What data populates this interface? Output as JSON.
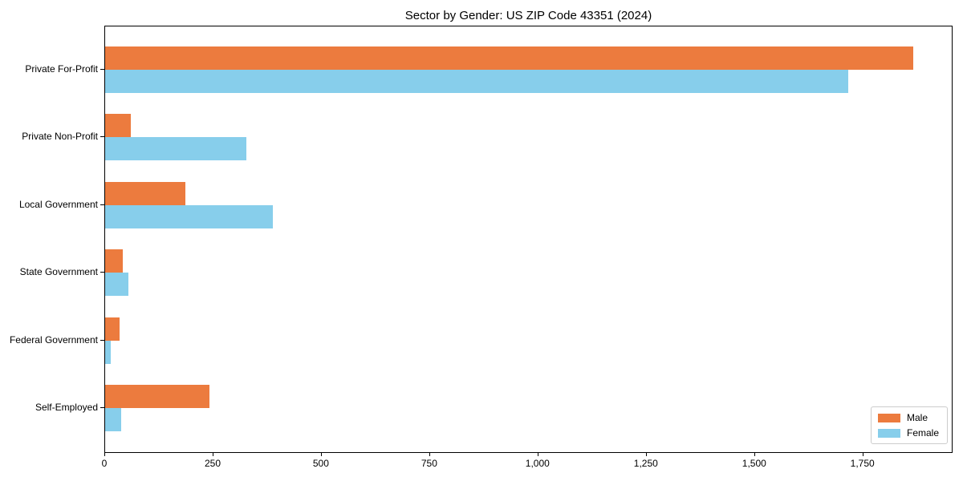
{
  "title": "Sector by Gender: US ZIP Code 43351 (2024)",
  "chart_data": {
    "type": "bar",
    "orientation": "horizontal",
    "title": "Sector by Gender: US ZIP Code 43351 (2024)",
    "xlabel": "",
    "ylabel": "",
    "categories": [
      "Private For-Profit",
      "Private Non-Profit",
      "Local Government",
      "State Government",
      "Federal Government",
      "Self-Employed"
    ],
    "series": [
      {
        "name": "Male",
        "color": "#ec7b3e",
        "values": [
          1865,
          60,
          185,
          40,
          34,
          241
        ]
      },
      {
        "name": "Female",
        "color": "#87ceeb",
        "values": [
          1716,
          326,
          387,
          54,
          13,
          37
        ]
      }
    ],
    "xlim": [
      0,
      1958
    ],
    "xtick_values": [
      0,
      250,
      500,
      750,
      1000,
      1250,
      1500,
      1750
    ],
    "xtick_labels": [
      "0",
      "250",
      "500",
      "750",
      "1,000",
      "1,250",
      "1,500",
      "1,750"
    ],
    "grid": false,
    "legend_position": "lower right"
  },
  "legend": {
    "items": [
      {
        "label": "Male",
        "color": "#ec7b3e"
      },
      {
        "label": "Female",
        "color": "#87ceeb"
      }
    ]
  }
}
